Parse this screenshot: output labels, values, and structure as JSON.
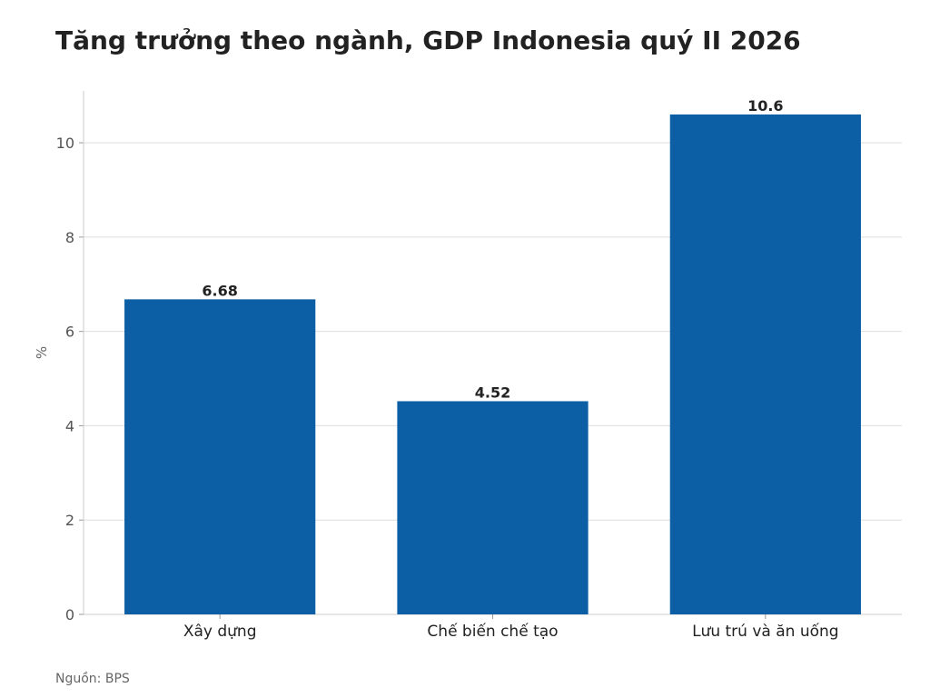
{
  "chart_data": {
    "type": "bar",
    "title": "Tăng trưởng theo ngành, GDP Indonesia quý II 2026",
    "categories": [
      "Xây dựng",
      "Chế biến chế tạo",
      "Lưu trú và ăn uống"
    ],
    "values": [
      6.68,
      4.52,
      10.6
    ],
    "value_labels": [
      "6.68",
      "4.52",
      "10.6"
    ],
    "xlabel": "",
    "ylabel": "%",
    "ylim": [
      0,
      11.1
    ],
    "yticks": [
      0,
      2,
      4,
      6,
      8,
      10
    ],
    "grid": "horizontal",
    "bar_color": "#0c5fa5",
    "source": "Nguồn: BPS"
  }
}
